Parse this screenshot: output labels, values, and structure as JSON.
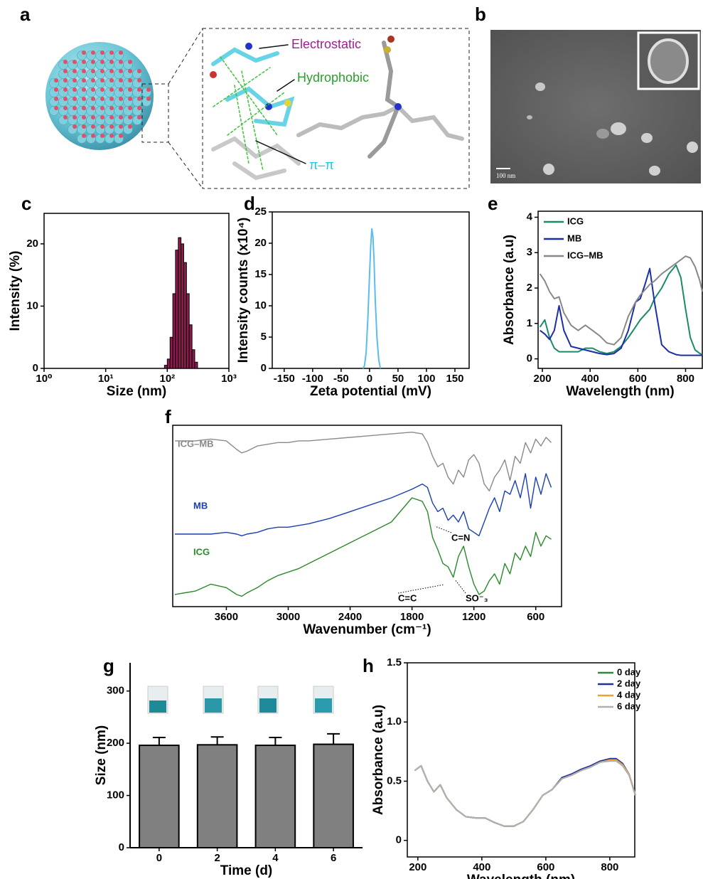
{
  "figure": {
    "panel_a": {
      "label": "a",
      "annotations": [
        "Electrostatic",
        "Hydrophobic",
        "π–π"
      ]
    },
    "panel_b": {
      "label": "b",
      "scale_bar": "100 nm"
    }
  },
  "chart_data": [
    {
      "panel": "c",
      "type": "histogram",
      "xlabel": "Size (nm)",
      "ylabel": "Intensity (%)",
      "bins": [
        90,
        100,
        111,
        123,
        136,
        151,
        167,
        185,
        205,
        227,
        252,
        279,
        310
      ],
      "values": [
        0.5,
        1.5,
        5,
        12,
        19,
        21,
        20,
        17,
        12,
        7,
        3,
        1
      ],
      "color": "#8e1a4f",
      "xlog": true,
      "xlim": [
        1,
        1000
      ],
      "xticks": [
        {
          "value": 1,
          "label": "10⁰"
        },
        {
          "value": 10,
          "label": "10¹"
        },
        {
          "value": 100,
          "label": "10²"
        },
        {
          "value": 1000,
          "label": "10³"
        }
      ],
      "ylim": [
        0,
        24.9
      ],
      "yticks": [
        0,
        10,
        20
      ]
    },
    {
      "panel": "d",
      "type": "line",
      "xlabel": "Zeta potential (mV)",
      "ylabel": "Intensity counts (x10⁴)",
      "x": [
        -12,
        -9,
        -6,
        -3,
        0,
        2,
        4,
        6,
        8,
        10,
        13,
        16,
        19
      ],
      "values": [
        0,
        0.4,
        2.5,
        8,
        15,
        19.5,
        22.3,
        21,
        17,
        11,
        5,
        1.5,
        0
      ],
      "color": "#5bbcf0",
      "xlim": [
        -171,
        175
      ],
      "xticks": [
        -150,
        -100,
        -50,
        0,
        50,
        100,
        150
      ],
      "ylim": [
        0,
        25
      ],
      "yticks": [
        0,
        5,
        10,
        15,
        20,
        25
      ]
    },
    {
      "panel": "e",
      "type": "line",
      "xlabel": "Wavelength (nm)",
      "ylabel": "Absorbance (a.u)",
      "x": [
        190,
        210,
        230,
        250,
        270,
        290,
        320,
        350,
        380,
        410,
        440,
        470,
        500,
        530,
        560,
        590,
        610,
        630,
        650,
        670,
        700,
        730,
        760,
        780,
        800,
        820,
        840,
        860,
        870
      ],
      "series": [
        {
          "name": "ICG",
          "color": "#1a8a6a",
          "values": [
            0.9,
            1.1,
            0.6,
            0.3,
            0.2,
            0.2,
            0.2,
            0.2,
            0.3,
            0.3,
            0.2,
            0.15,
            0.2,
            0.35,
            0.6,
            0.9,
            1.1,
            1.25,
            1.4,
            1.7,
            2.0,
            2.4,
            2.65,
            2.3,
            1.4,
            0.6,
            0.25,
            0.15,
            0.12
          ]
        },
        {
          "name": "MB",
          "color": "#1a2fa8",
          "values": [
            0.8,
            0.7,
            0.55,
            0.8,
            1.5,
            0.8,
            0.35,
            0.3,
            0.25,
            0.2,
            0.15,
            0.12,
            0.15,
            0.3,
            0.8,
            1.6,
            1.7,
            2.1,
            2.55,
            1.6,
            0.4,
            0.2,
            0.12,
            0.1,
            0.1,
            0.1,
            0.1,
            0.1,
            0.1
          ]
        },
        {
          "name": "ICG–MB",
          "color": "#888888",
          "values": [
            2.4,
            2.2,
            1.9,
            1.7,
            1.75,
            1.3,
            0.95,
            0.8,
            0.95,
            0.8,
            0.65,
            0.45,
            0.4,
            0.6,
            1.2,
            1.6,
            1.8,
            1.95,
            2.1,
            2.2,
            2.4,
            2.55,
            2.7,
            2.8,
            2.9,
            2.85,
            2.6,
            2.2,
            1.9
          ]
        }
      ],
      "legend": "upper left",
      "xlim": [
        182,
        870
      ],
      "xticks": [
        200,
        400,
        600,
        800
      ],
      "ylim": [
        -0.27,
        4.17
      ],
      "yticks": [
        0,
        1,
        2,
        3,
        4
      ]
    },
    {
      "panel": "f",
      "type": "line",
      "xlabel": "Wavenumber (cm⁻¹)",
      "x": [
        4100,
        3900,
        3750,
        3600,
        3500,
        3450,
        3400,
        3300,
        3200,
        3100,
        3000,
        2900,
        2800,
        2600,
        2400,
        2200,
        2000,
        1800,
        1700,
        1650,
        1600,
        1550,
        1500,
        1450,
        1400,
        1350,
        1300,
        1250,
        1200,
        1150,
        1100,
        1050,
        1000,
        950,
        900,
        850,
        800,
        750,
        700,
        650,
        600,
        550,
        500,
        450
      ],
      "series": [
        {
          "name": "ICG–MB",
          "color": "#8a8a8a",
          "values": [
            91,
            91,
            92,
            91,
            86,
            84,
            85,
            88,
            89,
            90,
            90,
            91,
            91,
            92,
            93,
            94,
            95,
            96,
            95,
            90,
            82,
            76,
            78,
            70,
            66,
            74,
            70,
            80,
            83,
            78,
            66,
            62,
            70,
            74,
            80,
            68,
            82,
            78,
            90,
            84,
            92,
            88,
            93,
            90
          ]
        },
        {
          "name": "MB",
          "color": "#1a3fb0",
          "values": [
            37,
            37,
            37,
            38,
            37,
            36,
            37,
            38,
            40,
            41,
            41,
            42,
            43,
            46,
            50,
            54,
            58,
            63,
            66,
            64,
            55,
            50,
            52,
            45,
            48,
            44,
            50,
            40,
            38,
            36,
            44,
            52,
            58,
            50,
            62,
            60,
            68,
            58,
            72,
            52,
            70,
            60,
            72,
            64
          ]
        },
        {
          "name": "ICG",
          "color": "#2a8a2a",
          "values": [
            2,
            4,
            8,
            6,
            2,
            1,
            3,
            6,
            10,
            13,
            15,
            17,
            20,
            26,
            32,
            38,
            44,
            58,
            56,
            50,
            35,
            28,
            20,
            18,
            12,
            24,
            30,
            18,
            8,
            2,
            4,
            10,
            14,
            8,
            20,
            14,
            26,
            22,
            30,
            24,
            38,
            30,
            36,
            34
          ]
        }
      ],
      "annotations": [
        "C=N",
        "C=C",
        "SO⁻₃"
      ],
      "xlim": [
        4120,
        350
      ],
      "xticks": [
        3600,
        3000,
        2400,
        1800,
        1200,
        600
      ],
      "ylim": [
        -5,
        100
      ]
    },
    {
      "panel": "g",
      "type": "bar",
      "xlabel": "Time (d)",
      "ylabel": "Size (nm)",
      "categories": [
        "0",
        "2",
        "4",
        "6"
      ],
      "values": [
        196,
        197,
        196,
        198
      ],
      "errors": [
        15,
        15,
        15,
        20
      ],
      "color": "#808080",
      "ylim": [
        0,
        354
      ],
      "yticks": [
        0,
        100,
        200,
        300
      ]
    },
    {
      "panel": "h",
      "type": "line",
      "xlabel": "Wavelength (nm)",
      "ylabel": "Absorbance (a.u)",
      "x": [
        190,
        210,
        230,
        250,
        270,
        290,
        320,
        350,
        380,
        410,
        440,
        470,
        500,
        530,
        560,
        590,
        620,
        650,
        680,
        710,
        740,
        770,
        800,
        820,
        840,
        860,
        880
      ],
      "series": [
        {
          "name": "0 day",
          "color": "#2e8b3a",
          "values": [
            0.59,
            0.63,
            0.5,
            0.41,
            0.47,
            0.36,
            0.26,
            0.2,
            0.19,
            0.19,
            0.15,
            0.12,
            0.12,
            0.16,
            0.26,
            0.38,
            0.43,
            0.52,
            0.55,
            0.59,
            0.62,
            0.66,
            0.68,
            0.68,
            0.64,
            0.56,
            0.38
          ]
        },
        {
          "name": "2 day",
          "color": "#2030a0",
          "values": [
            0.59,
            0.63,
            0.5,
            0.41,
            0.47,
            0.36,
            0.26,
            0.2,
            0.19,
            0.19,
            0.15,
            0.12,
            0.12,
            0.16,
            0.26,
            0.38,
            0.43,
            0.53,
            0.56,
            0.6,
            0.63,
            0.67,
            0.69,
            0.69,
            0.65,
            0.56,
            0.38
          ]
        },
        {
          "name": "4 day",
          "color": "#f0a030",
          "values": [
            0.59,
            0.63,
            0.5,
            0.41,
            0.47,
            0.36,
            0.26,
            0.2,
            0.19,
            0.19,
            0.15,
            0.12,
            0.12,
            0.16,
            0.26,
            0.38,
            0.43,
            0.52,
            0.55,
            0.59,
            0.62,
            0.66,
            0.68,
            0.68,
            0.64,
            0.56,
            0.38
          ]
        },
        {
          "name": "6 day",
          "color": "#b0b0b0",
          "values": [
            0.59,
            0.63,
            0.5,
            0.41,
            0.47,
            0.36,
            0.26,
            0.2,
            0.19,
            0.19,
            0.15,
            0.12,
            0.12,
            0.16,
            0.26,
            0.38,
            0.43,
            0.52,
            0.55,
            0.59,
            0.62,
            0.66,
            0.67,
            0.67,
            0.63,
            0.55,
            0.38
          ]
        }
      ],
      "legend": "upper right",
      "xlim": [
        167,
        878
      ],
      "xticks": [
        200,
        400,
        600,
        800
      ],
      "ylim": [
        -0.14,
        1.5
      ],
      "yticks": [
        0,
        0.5,
        {
          "value": 1,
          "label": "1.0"
        },
        1.5
      ]
    }
  ]
}
